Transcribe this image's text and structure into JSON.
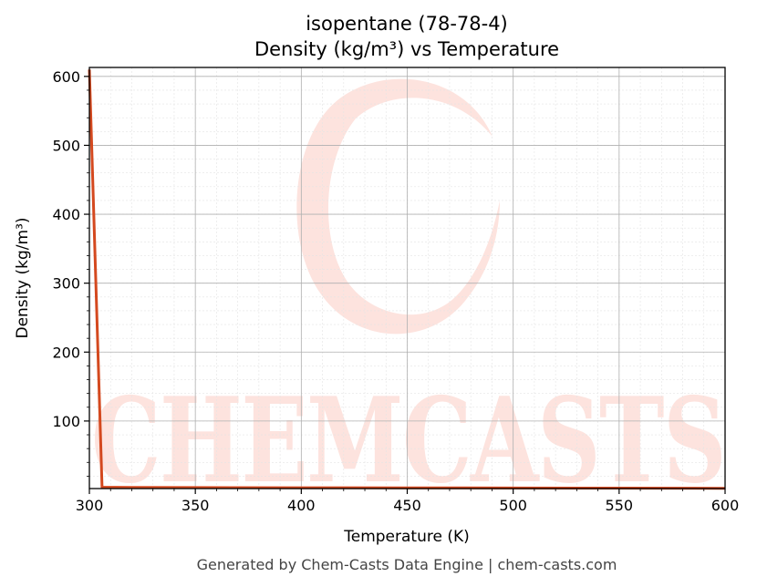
{
  "chart_data": {
    "type": "line",
    "title": "isopentane (78-78-4)",
    "subtitle": "Density (kg/m³) vs Temperature",
    "xlabel": "Temperature (K)",
    "ylabel": "Density (kg/m³)",
    "xlim": [
      300,
      600
    ],
    "ylim": [
      2,
      613
    ],
    "xticks": [
      300,
      350,
      400,
      450,
      500,
      550,
      600
    ],
    "yticks": [
      100,
      200,
      300,
      400,
      500,
      600
    ],
    "grid": true,
    "series": [
      {
        "color": "#d4491f",
        "x": [
          300,
          306,
          320,
          350,
          400,
          450,
          500,
          550,
          600
        ],
        "y": [
          610,
          4,
          3.6,
          3.4,
          3.2,
          3.0,
          2.8,
          2.6,
          2.4
        ]
      }
    ]
  },
  "watermark": {
    "text": "CHEMCASTS",
    "color": "#fde3de"
  },
  "footer": "Generated by Chem-Casts Data Engine | chem-casts.com"
}
